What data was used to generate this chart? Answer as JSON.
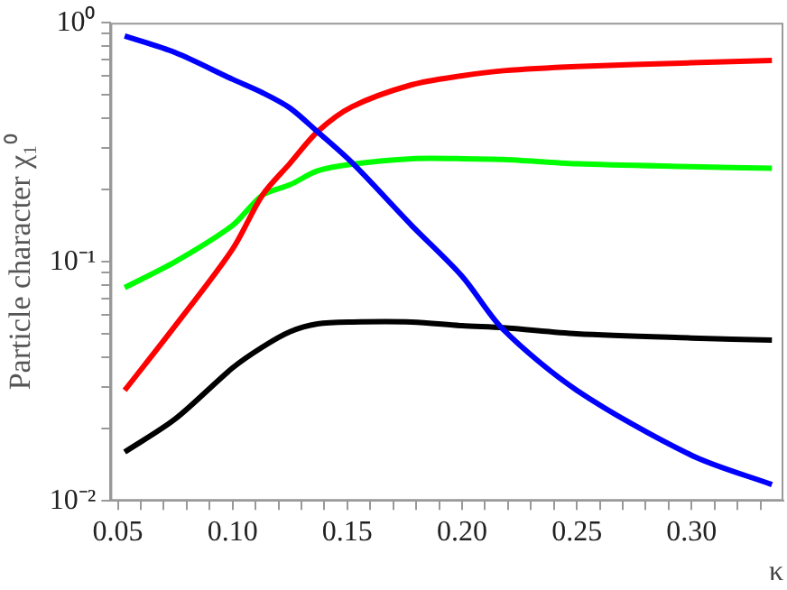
{
  "chart_data": {
    "type": "line",
    "ylabel": "Particle character χ₁⁰",
    "xlabel": "κ",
    "xlim": [
      0.0468,
      0.34
    ],
    "xticks": [
      {
        "value": 0.05,
        "label": "0.05"
      },
      {
        "value": 0.06,
        "label": null
      },
      {
        "value": 0.07,
        "label": null
      },
      {
        "value": 0.08,
        "label": null
      },
      {
        "value": 0.09,
        "label": null
      },
      {
        "value": 0.1,
        "label": "0.10"
      },
      {
        "value": 0.11,
        "label": null
      },
      {
        "value": 0.12,
        "label": null
      },
      {
        "value": 0.13,
        "label": null
      },
      {
        "value": 0.14,
        "label": null
      },
      {
        "value": 0.15,
        "label": "0.15"
      },
      {
        "value": 0.16,
        "label": null
      },
      {
        "value": 0.17,
        "label": null
      },
      {
        "value": 0.18,
        "label": null
      },
      {
        "value": 0.19,
        "label": null
      },
      {
        "value": 0.2,
        "label": "0.20"
      },
      {
        "value": 0.21,
        "label": null
      },
      {
        "value": 0.22,
        "label": null
      },
      {
        "value": 0.23,
        "label": null
      },
      {
        "value": 0.24,
        "label": null
      },
      {
        "value": 0.25,
        "label": "0.25"
      },
      {
        "value": 0.26,
        "label": null
      },
      {
        "value": 0.27,
        "label": null
      },
      {
        "value": 0.28,
        "label": null
      },
      {
        "value": 0.29,
        "label": null
      },
      {
        "value": 0.3,
        "label": "0.30"
      },
      {
        "value": 0.31,
        "label": null
      },
      {
        "value": 0.32,
        "label": null
      },
      {
        "value": 0.33,
        "label": null
      }
    ],
    "ylim": [
      0.01,
      1
    ],
    "log": "y",
    "yticks": [
      {
        "value": 0.01,
        "label": "10⁻²"
      },
      {
        "value": 0.02,
        "label": null
      },
      {
        "value": 0.03,
        "label": null
      },
      {
        "value": 0.04,
        "label": null
      },
      {
        "value": 0.05,
        "label": null
      },
      {
        "value": 0.06,
        "label": null
      },
      {
        "value": 0.07,
        "label": null
      },
      {
        "value": 0.08,
        "label": null
      },
      {
        "value": 0.09,
        "label": null
      },
      {
        "value": 0.1,
        "label": "10⁻¹"
      },
      {
        "value": 0.2,
        "label": null
      },
      {
        "value": 0.3,
        "label": null
      },
      {
        "value": 0.4,
        "label": null
      },
      {
        "value": 0.5,
        "label": null
      },
      {
        "value": 0.6,
        "label": null
      },
      {
        "value": 0.7,
        "label": null
      },
      {
        "value": 0.8,
        "label": null
      },
      {
        "value": 0.9,
        "label": null
      },
      {
        "value": 1,
        "label": "10⁰"
      }
    ],
    "grid": false,
    "legend": false,
    "marker": "none",
    "line_style": "solid",
    "x": [
      0.053,
      0.075,
      0.1,
      0.113,
      0.125,
      0.137,
      0.152,
      0.178,
      0.2,
      0.218,
      0.25,
      0.3,
      0.335
    ],
    "series": [
      {
        "color": "#0000ff",
        "values": [
          0.88,
          0.75,
          0.58,
          0.51,
          0.44,
          0.35,
          0.26,
          0.142,
          0.087,
          0.052,
          0.029,
          0.0155,
          0.0117
        ]
      },
      {
        "color": "#ff0000",
        "values": [
          0.029,
          0.054,
          0.113,
          0.19,
          0.258,
          0.35,
          0.445,
          0.55,
          0.6,
          0.63,
          0.656,
          0.68,
          0.695
        ]
      },
      {
        "color": "#00ff00",
        "values": [
          0.078,
          0.1,
          0.142,
          0.19,
          0.21,
          0.24,
          0.256,
          0.27,
          0.27,
          0.268,
          0.257,
          0.25,
          0.246
        ]
      },
      {
        "color": "#000000",
        "values": [
          0.016,
          0.022,
          0.036,
          0.044,
          0.051,
          0.055,
          0.056,
          0.056,
          0.054,
          0.053,
          0.05,
          0.048,
          0.047
        ]
      }
    ]
  }
}
